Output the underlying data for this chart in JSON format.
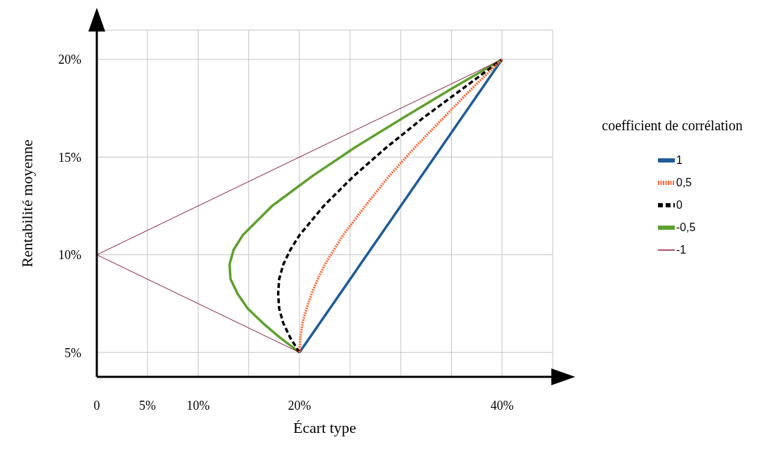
{
  "chart_data": {
    "type": "line",
    "xlabel": "Écart type",
    "ylabel": "Rentabilité moyenne",
    "legend_title": "coefficient de corrélation",
    "legend": "right",
    "grid": true,
    "marker": "none",
    "xlim": [
      0,
      45
    ],
    "ylim": [
      3.75,
      21.5
    ],
    "xticks": [
      0,
      {
        "value": 5,
        "label": "5%"
      },
      {
        "value": 10,
        "label": "10%"
      },
      {
        "value": 15,
        "label": null
      },
      {
        "value": 20,
        "label": "20%"
      },
      {
        "value": 25,
        "label": null
      },
      {
        "value": 30,
        "label": null
      },
      {
        "value": 35,
        "label": null
      },
      {
        "value": 40,
        "label": "40%"
      },
      {
        "value": 45,
        "label": null
      }
    ],
    "yticks": [
      {
        "value": 5,
        "label": "5%"
      },
      {
        "value": 10,
        "label": "10%"
      },
      {
        "value": 15,
        "label": "15%"
      },
      {
        "value": 20,
        "label": "20%"
      }
    ],
    "series": [
      {
        "name": "1",
        "color": "#1f5c99",
        "line_style": "solid",
        "x": [
          20,
          40
        ],
        "values": [
          5,
          20
        ]
      },
      {
        "name": "0,5",
        "color": "#ff6633",
        "line_style": "dotted",
        "x": [
          20,
          20.1,
          20.3,
          20.7,
          21.2,
          21.8,
          22.5,
          23.4,
          24.3,
          26.5,
          28.8,
          31.4,
          34.2,
          37,
          40
        ],
        "values": [
          5,
          5.75,
          6.5,
          7.25,
          8,
          8.75,
          9.5,
          10.25,
          11,
          12.5,
          14,
          15.5,
          17,
          18.5,
          20
        ]
      },
      {
        "name": "0",
        "color": "#000000",
        "line_style": "dashed",
        "x": [
          20,
          19.1,
          18.4,
          18,
          17.9,
          18,
          18.4,
          19.1,
          20,
          22.4,
          25.3,
          28.6,
          32.2,
          36.1,
          40
        ],
        "values": [
          5,
          5.75,
          6.5,
          7.25,
          8,
          8.75,
          9.5,
          10.25,
          11,
          12.5,
          14,
          15.5,
          17,
          18.5,
          20
        ]
      },
      {
        "name": "-0,5",
        "color": "#5fa02d",
        "line_style": "solid",
        "x": [
          20,
          18.1,
          16.4,
          14.9,
          13.9,
          13.2,
          13.1,
          13.5,
          14.4,
          17.3,
          21.2,
          25.5,
          30.2,
          35,
          40
        ],
        "values": [
          5,
          5.75,
          6.5,
          7.25,
          8,
          8.75,
          9.5,
          10.25,
          11,
          12.5,
          14,
          15.5,
          17,
          18.5,
          20
        ]
      },
      {
        "name": "-1",
        "color": "#8b1a3a",
        "line_style": "solid",
        "x": [
          20,
          0,
          40
        ],
        "values": [
          5,
          10,
          20
        ]
      }
    ]
  }
}
